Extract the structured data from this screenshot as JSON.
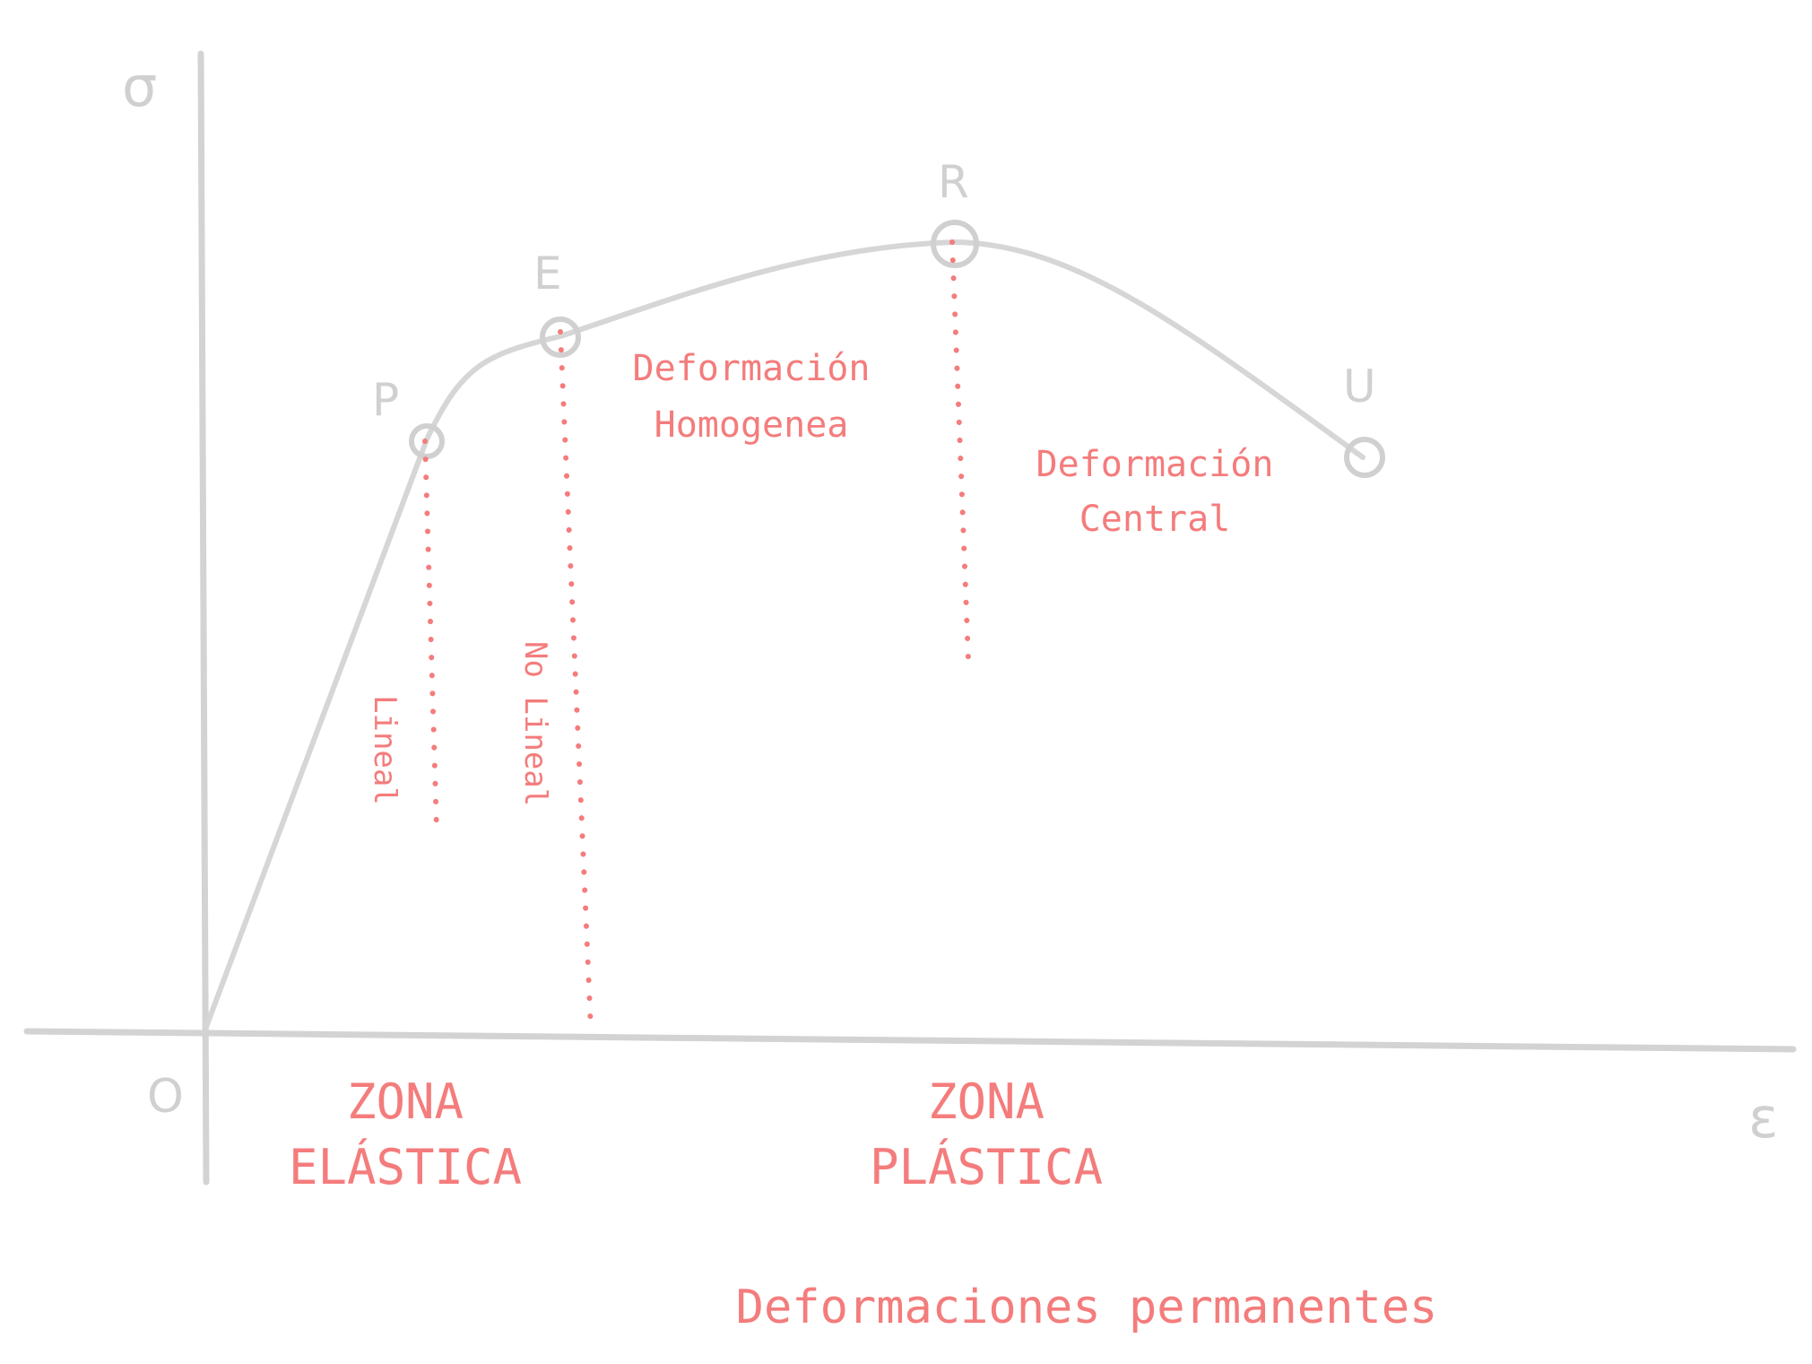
{
  "axes": {
    "y_label": "σ",
    "x_label": "ε",
    "origin_label": "O"
  },
  "points": {
    "p": "P",
    "e": "E",
    "r": "R",
    "u": "U"
  },
  "annotations": {
    "lineal": "Lineal",
    "no_lineal": "No Lineal",
    "homogenea_line1": "Deformación",
    "homogenea_line2": "Homogenea",
    "central_line1": "Deformación",
    "central_line2": "Central"
  },
  "zones": {
    "elastic_line1": "ZONA",
    "elastic_line2": "ELÁSTICA",
    "plastic_line1": "ZONA",
    "plastic_line2": "PLÁSTICA"
  },
  "footer": "Deformaciones permanentes",
  "colors": {
    "accent": "#f47c7c",
    "lines": "#d3d3d3"
  }
}
